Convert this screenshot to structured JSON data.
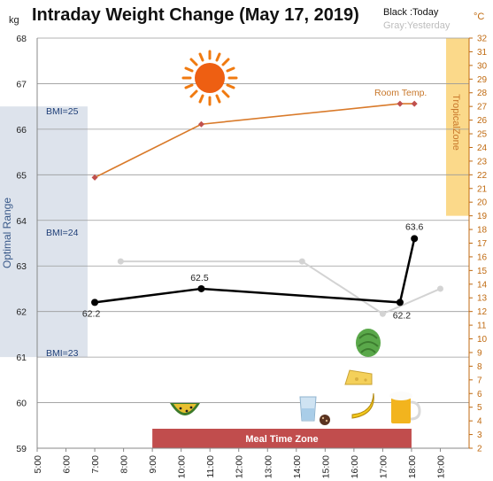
{
  "chart_data": {
    "type": "line",
    "title": "Intraday Weight Change (May 17, 2019)",
    "y_unit": "kg",
    "y2_unit": "°C",
    "legend": {
      "today": "Black :Today",
      "yesterday": "Gray:Yesterday"
    },
    "x_ticks": [
      "5:00",
      "6:00",
      "7:00",
      "8:00",
      "9:00",
      "10:00",
      "11:00",
      "12:00",
      "13:00",
      "14:00",
      "15:00",
      "16:00",
      "17:00",
      "18:00",
      "19:00"
    ],
    "xlim": [
      5,
      20
    ],
    "ylim": [
      59,
      68
    ],
    "y2lim": [
      2,
      32
    ],
    "y_ticks": [
      59,
      60,
      61,
      62,
      63,
      64,
      65,
      66,
      67,
      68
    ],
    "y2_ticks": [
      2,
      3,
      4,
      5,
      6,
      7,
      8,
      9,
      10,
      11,
      12,
      13,
      14,
      15,
      16,
      17,
      18,
      19,
      20,
      21,
      22,
      23,
      24,
      25,
      26,
      27,
      28,
      29,
      30,
      31,
      32
    ],
    "series": [
      {
        "name": "Today",
        "color": "#000000",
        "x": [
          7.0,
          10.7,
          17.6,
          18.1
        ],
        "y": [
          62.2,
          62.5,
          62.2,
          63.6
        ],
        "labels": [
          "62.2",
          "62.5",
          "62.2",
          "63.6"
        ]
      },
      {
        "name": "Yesterday",
        "color": "#d3d3d3",
        "x": [
          7.9,
          14.2,
          17.0,
          19.0
        ],
        "y": [
          63.1,
          63.1,
          61.95,
          62.5
        ]
      },
      {
        "name": "Room Temp.",
        "color": "#d97a2a",
        "axis": "right",
        "x": [
          7.0,
          10.7,
          17.6,
          18.1
        ],
        "y": [
          21.8,
          25.7,
          27.2,
          27.2
        ]
      }
    ],
    "annotations": {
      "optimal_range": "Optimal Range",
      "bmi_25": "BMI=25",
      "bmi_24": "BMI=24",
      "bmi_23": "BMI=23",
      "tropical_zone": "TropicalZone",
      "room_temp": "Room Temp.",
      "meal_zone": "Meal Time Zone"
    },
    "colors": {
      "today": "#000000",
      "yesterday": "#d3d3d3",
      "temp": "#d97a2a",
      "optimal": "#dde3ec",
      "tropical": "#fbd98a",
      "meal": "#c14d4d",
      "grid": "#888888"
    },
    "grid": true
  }
}
